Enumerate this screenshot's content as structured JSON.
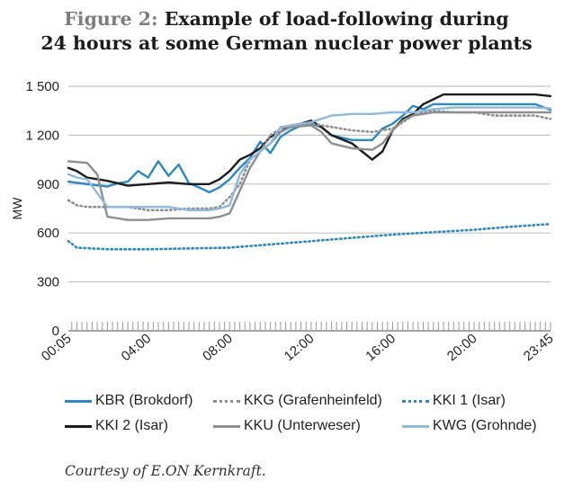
{
  "title": {
    "figure_label": "Figure 2:",
    "line1": "Example of load-following during",
    "line2": "24 hours at some German nuclear power plants"
  },
  "credit": "Courtesy of E.ON Kernkraft.",
  "chart_data": {
    "type": "line",
    "title": "Figure 2: Example of load-following during 24 hours at some German nuclear power plants",
    "xlabel": "",
    "ylabel": "MW",
    "ylim": [
      0,
      1500
    ],
    "xlim": [
      0.0833,
      23.75
    ],
    "y_ticks": [
      0,
      300,
      600,
      900,
      1200,
      1500
    ],
    "y_tick_labels": [
      "0",
      "300",
      "600",
      "900",
      "1 200",
      "1 500"
    ],
    "x_ticks": [
      0.0833,
      4,
      8,
      12,
      16,
      20,
      23.75
    ],
    "x_tick_labels": [
      "00:05",
      "04:00",
      "08:00",
      "12:00",
      "16:00",
      "20:00",
      "23:45"
    ],
    "grid": "horizontal",
    "legend_placement": "bottom",
    "series": [
      {
        "name": "KBR (Brokdorf)",
        "color": "#2b88c4",
        "style": "solid",
        "points": [
          [
            0.0833,
            915
          ],
          [
            1,
            900
          ],
          [
            2,
            885
          ],
          [
            2.5,
            905
          ],
          [
            3,
            915
          ],
          [
            3.5,
            980
          ],
          [
            4,
            940
          ],
          [
            4.5,
            1040
          ],
          [
            5,
            950
          ],
          [
            5.5,
            1020
          ],
          [
            6,
            905
          ],
          [
            6.5,
            880
          ],
          [
            7,
            850
          ],
          [
            7.5,
            880
          ],
          [
            8,
            930
          ],
          [
            8.5,
            1000
          ],
          [
            9,
            1060
          ],
          [
            9.5,
            1160
          ],
          [
            10,
            1090
          ],
          [
            10.5,
            1190
          ],
          [
            11,
            1230
          ],
          [
            11.5,
            1260
          ],
          [
            12,
            1270
          ],
          [
            12.5,
            1250
          ],
          [
            13,
            1200
          ],
          [
            14,
            1170
          ],
          [
            15,
            1170
          ],
          [
            15.5,
            1240
          ],
          [
            16,
            1270
          ],
          [
            16.5,
            1320
          ],
          [
            17,
            1380
          ],
          [
            17.5,
            1360
          ],
          [
            18,
            1390
          ],
          [
            19,
            1390
          ],
          [
            20,
            1390
          ],
          [
            21,
            1390
          ],
          [
            22,
            1390
          ],
          [
            23,
            1390
          ],
          [
            23.75,
            1355
          ]
        ]
      },
      {
        "name": "KKI 2 (Isar)",
        "color": "#1c1c1c",
        "style": "solid",
        "points": [
          [
            0.0833,
            1000
          ],
          [
            0.5,
            980
          ],
          [
            1,
            940
          ],
          [
            2,
            920
          ],
          [
            3,
            890
          ],
          [
            4,
            900
          ],
          [
            5,
            910
          ],
          [
            6,
            900
          ],
          [
            7,
            900
          ],
          [
            7.5,
            930
          ],
          [
            8,
            980
          ],
          [
            8.5,
            1050
          ],
          [
            9,
            1080
          ],
          [
            9.5,
            1120
          ],
          [
            10,
            1190
          ],
          [
            10.5,
            1220
          ],
          [
            11,
            1260
          ],
          [
            11.5,
            1270
          ],
          [
            12,
            1290
          ],
          [
            12.5,
            1250
          ],
          [
            13,
            1200
          ],
          [
            14,
            1150
          ],
          [
            14.5,
            1100
          ],
          [
            15,
            1050
          ],
          [
            15.5,
            1100
          ],
          [
            16,
            1230
          ],
          [
            16.5,
            1300
          ],
          [
            17,
            1330
          ],
          [
            17.5,
            1390
          ],
          [
            18,
            1420
          ],
          [
            18.5,
            1450
          ],
          [
            19,
            1450
          ],
          [
            20,
            1450
          ],
          [
            21,
            1450
          ],
          [
            22,
            1450
          ],
          [
            23,
            1450
          ],
          [
            23.75,
            1440
          ]
        ]
      },
      {
        "name": "KKG (Grafenheinfeld)",
        "color": "#8f8f8f",
        "style": "dotted",
        "points": [
          [
            0.0833,
            800
          ],
          [
            0.5,
            770
          ],
          [
            1,
            760
          ],
          [
            2,
            760
          ],
          [
            3,
            760
          ],
          [
            4,
            740
          ],
          [
            5,
            740
          ],
          [
            6,
            750
          ],
          [
            7,
            750
          ],
          [
            7.5,
            760
          ],
          [
            8,
            820
          ],
          [
            8.5,
            900
          ],
          [
            9,
            1050
          ],
          [
            9.5,
            1100
          ],
          [
            10,
            1200
          ],
          [
            10.5,
            1240
          ],
          [
            11,
            1260
          ],
          [
            12,
            1270
          ],
          [
            13,
            1250
          ],
          [
            14,
            1230
          ],
          [
            15,
            1220
          ],
          [
            16,
            1240
          ],
          [
            16.5,
            1280
          ],
          [
            17,
            1320
          ],
          [
            17.5,
            1340
          ],
          [
            18,
            1350
          ],
          [
            19,
            1340
          ],
          [
            20,
            1340
          ],
          [
            21,
            1320
          ],
          [
            22,
            1320
          ],
          [
            23,
            1320
          ],
          [
            23.75,
            1300
          ]
        ]
      },
      {
        "name": "KKU (Unterweser)",
        "color": "#8f8f8f",
        "style": "solid",
        "points": [
          [
            0.0833,
            1040
          ],
          [
            1,
            1030
          ],
          [
            1.5,
            960
          ],
          [
            2,
            700
          ],
          [
            3,
            680
          ],
          [
            4,
            680
          ],
          [
            5,
            690
          ],
          [
            6,
            690
          ],
          [
            7,
            690
          ],
          [
            7.5,
            700
          ],
          [
            8,
            720
          ],
          [
            8.5,
            860
          ],
          [
            9,
            1000
          ],
          [
            9.5,
            1100
          ],
          [
            10,
            1150
          ],
          [
            10.5,
            1220
          ],
          [
            11,
            1250
          ],
          [
            12,
            1260
          ],
          [
            12.5,
            1220
          ],
          [
            13,
            1150
          ],
          [
            14,
            1120
          ],
          [
            15,
            1110
          ],
          [
            15.5,
            1150
          ],
          [
            16,
            1230
          ],
          [
            16.5,
            1290
          ],
          [
            17,
            1320
          ],
          [
            18,
            1340
          ],
          [
            19,
            1340
          ],
          [
            20,
            1340
          ],
          [
            21,
            1340
          ],
          [
            22,
            1340
          ],
          [
            23,
            1340
          ],
          [
            23.75,
            1340
          ]
        ]
      },
      {
        "name": "KKI 1 (Isar)",
        "color": "#2b88c4",
        "style": "dotted",
        "points": [
          [
            0.0833,
            550
          ],
          [
            0.5,
            510
          ],
          [
            2,
            500
          ],
          [
            4,
            500
          ],
          [
            6,
            505
          ],
          [
            8,
            510
          ],
          [
            10,
            530
          ],
          [
            12,
            550
          ],
          [
            14,
            570
          ],
          [
            16,
            590
          ],
          [
            18,
            605
          ],
          [
            20,
            620
          ],
          [
            22,
            640
          ],
          [
            23.75,
            655
          ]
        ]
      },
      {
        "name": "KWG (Grohnde)",
        "color": "#8fb9df",
        "style": "solid",
        "points": [
          [
            0.0833,
            960
          ],
          [
            0.5,
            940
          ],
          [
            1,
            930
          ],
          [
            2,
            760
          ],
          [
            3,
            760
          ],
          [
            4,
            760
          ],
          [
            5,
            760
          ],
          [
            6,
            740
          ],
          [
            7,
            740
          ],
          [
            7.5,
            750
          ],
          [
            8,
            770
          ],
          [
            8.5,
            960
          ],
          [
            9,
            1050
          ],
          [
            9.5,
            1100
          ],
          [
            10,
            1150
          ],
          [
            10.5,
            1250
          ],
          [
            11,
            1260
          ],
          [
            12,
            1280
          ],
          [
            13,
            1320
          ],
          [
            14,
            1330
          ],
          [
            15,
            1330
          ],
          [
            16,
            1340
          ],
          [
            17,
            1340
          ],
          [
            18,
            1360
          ],
          [
            19,
            1370
          ],
          [
            20,
            1370
          ],
          [
            21,
            1370
          ],
          [
            22,
            1370
          ],
          [
            23,
            1370
          ],
          [
            23.75,
            1365
          ]
        ]
      }
    ]
  },
  "legend": {
    "items": [
      {
        "label": "KBR (Brokdorf)",
        "color": "#2b88c4",
        "style": "solid"
      },
      {
        "label": "KKG (Grafenheinfeld)",
        "color": "#8f8f8f",
        "style": "dotted"
      },
      {
        "label": "KKI 1 (Isar)",
        "color": "#2b88c4",
        "style": "dotted"
      },
      {
        "label": "KKI 2 (Isar)",
        "color": "#1c1c1c",
        "style": "solid"
      },
      {
        "label": "KKU (Unterweser)",
        "color": "#8f8f8f",
        "style": "solid"
      },
      {
        "label": "KWG (Grohnde)",
        "color": "#8fb9df",
        "style": "solid"
      }
    ]
  }
}
